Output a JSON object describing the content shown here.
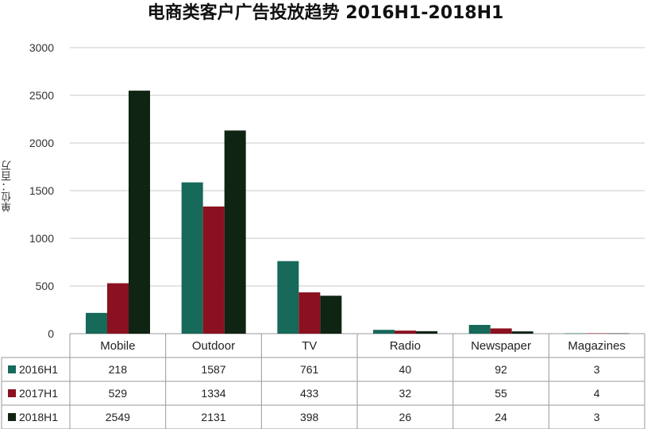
{
  "chart_data": {
    "type": "bar",
    "title": "电商类客户广告投放趋势 2016H1-2018H1",
    "ylabel": "单位：百万",
    "xlabel": "",
    "ylim": [
      0,
      3000
    ],
    "yticks": [
      0,
      500,
      1000,
      1500,
      2000,
      2500,
      3000
    ],
    "grid": true,
    "legend": "data-table",
    "categories": [
      "Mobile",
      "Outdoor",
      "TV",
      "Radio",
      "Newspaper",
      "Magazines"
    ],
    "series": [
      {
        "name": "2016H1",
        "color": "#17695a",
        "values": [
          218,
          1587,
          761,
          40,
          92,
          3
        ]
      },
      {
        "name": "2017H1",
        "color": "#8b1020",
        "values": [
          529,
          1334,
          433,
          32,
          55,
          4
        ]
      },
      {
        "name": "2018H1",
        "color": "#0f2412",
        "values": [
          2549,
          2131,
          398,
          26,
          24,
          3
        ]
      }
    ]
  }
}
